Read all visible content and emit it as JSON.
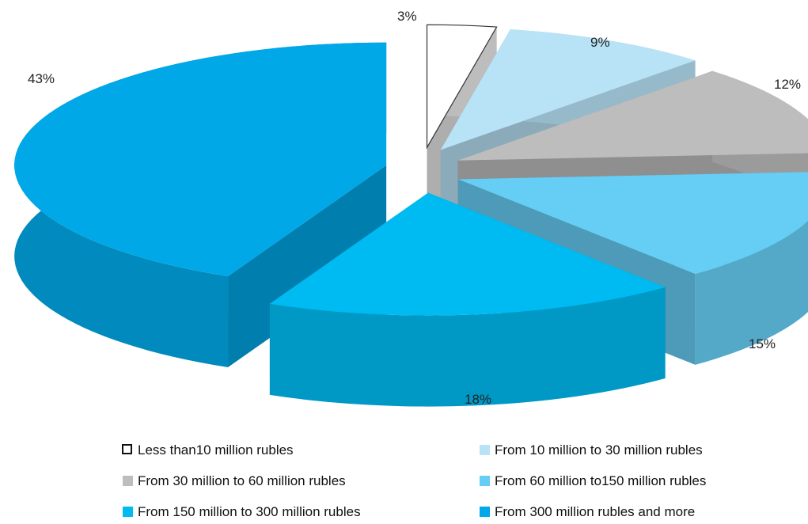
{
  "chart_data": {
    "type": "pie",
    "title": "",
    "style": "3d-exploded",
    "legend_position": "bottom",
    "slices": [
      {
        "label": "Less than10 million rubles",
        "value": 3,
        "value_label": "3%",
        "color": "#ffffff",
        "edge": "#555555"
      },
      {
        "label": "From 10 million to 30 million rubles",
        "value": 9,
        "value_label": "9%",
        "color": "#b8e3f7",
        "edge": "#96c3d6"
      },
      {
        "label": "From 30 million to 60 million rubles",
        "value": 12,
        "value_label": "12%",
        "color": "#bdbdbd",
        "edge": "#7f7f7f"
      },
      {
        "label": "From 60 million to150 million rubles",
        "value": 15,
        "value_label": "15%",
        "color": "#66cdf4",
        "edge": "#56a9c9"
      },
      {
        "label": "From 150 million to 300 million rubles",
        "value": 18,
        "value_label": "18%",
        "color": "#00baf2",
        "edge": "#0098c8"
      },
      {
        "label": "From 300 million rubles and more",
        "value": 43,
        "value_label": "43%",
        "color": "#00a8e8",
        "edge": "#0090c7"
      }
    ]
  }
}
